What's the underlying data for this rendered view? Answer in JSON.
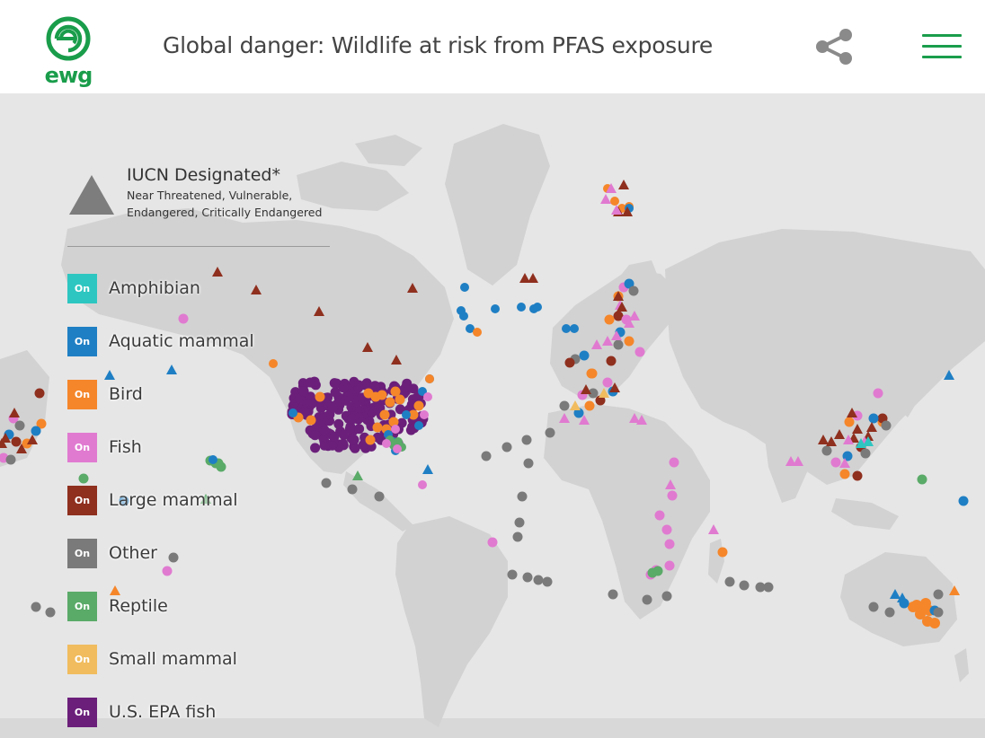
{
  "header": {
    "logo_text": "ewg",
    "title": "Global danger: Wildlife at risk from PFAS exposure"
  },
  "legend": {
    "iucn_title": "IUCN Designated*",
    "iucn_sub_1": "Near Threatened, Vulnerable,",
    "iucn_sub_2": "Endangered, Critically Endangered",
    "items": [
      {
        "label": "Amphibian",
        "badge": "On",
        "color": "#2ec6c0"
      },
      {
        "label": "Aquatic mammal",
        "badge": "On",
        "color": "#1f7fc4"
      },
      {
        "label": "Bird",
        "badge": "On",
        "color": "#f5862a"
      },
      {
        "label": "Fish",
        "badge": "On",
        "color": "#e07ad0"
      },
      {
        "label": "Large mammal",
        "badge": "On",
        "color": "#8f2f1e"
      },
      {
        "label": "Other",
        "badge": "On",
        "color": "#7a7a7a"
      },
      {
        "label": "Reptile",
        "badge": "On",
        "color": "#5aaa68"
      },
      {
        "label": "Small mammal",
        "badge": "On",
        "color": "#f0bc5e"
      },
      {
        "label": "U.S. EPA fish",
        "badge": "On",
        "color": "#6b1f7a"
      }
    ]
  },
  "icons": {
    "logo": "ewg-logo-icon",
    "share": "share-icon",
    "menu": "hamburger-menu-icon"
  }
}
